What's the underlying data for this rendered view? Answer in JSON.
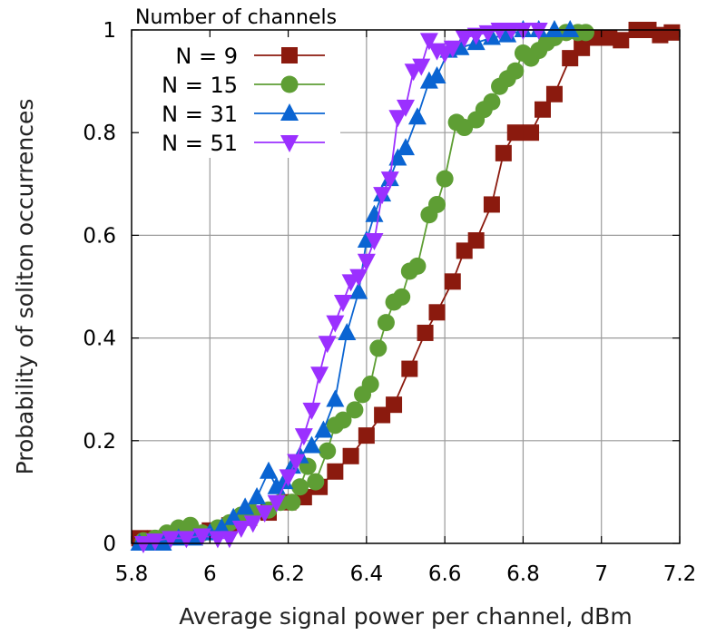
{
  "colors": {
    "N9": "#8b1a0e",
    "N15": "#5e9e34",
    "N31": "#0a64d2",
    "N51": "#9b30ff",
    "grid": "#9a9a9a",
    "axis": "#000000"
  },
  "chart_data": {
    "type": "line",
    "xlabel": "Average signal power per channel, dBm",
    "ylabel": "Probability of soliton occurrences",
    "xlim": [
      5.8,
      7.2
    ],
    "ylim": [
      0,
      1
    ],
    "xticks": [
      "5.8",
      "6",
      "6.2",
      "6.4",
      "6.6",
      "6.8",
      "7",
      "7.2"
    ],
    "yticks": [
      "0",
      "0.2",
      "0.4",
      "0.6",
      "0.8",
      "1"
    ],
    "grid": true,
    "legend_title": "Number of channels",
    "legend_position": "top-left",
    "series": [
      {
        "name": "N = 9",
        "marker": "square",
        "color_key": "N9",
        "points": [
          [
            5.82,
            0.01
          ],
          [
            5.86,
            0.01
          ],
          [
            5.9,
            0.015
          ],
          [
            5.95,
            0.02
          ],
          [
            6.0,
            0.025
          ],
          [
            6.05,
            0.035
          ],
          [
            6.1,
            0.05
          ],
          [
            6.15,
            0.06
          ],
          [
            6.2,
            0.08
          ],
          [
            6.24,
            0.09
          ],
          [
            6.28,
            0.11
          ],
          [
            6.32,
            0.14
          ],
          [
            6.36,
            0.17
          ],
          [
            6.4,
            0.21
          ],
          [
            6.44,
            0.25
          ],
          [
            6.47,
            0.27
          ],
          [
            6.51,
            0.34
          ],
          [
            6.55,
            0.41
          ],
          [
            6.58,
            0.45
          ],
          [
            6.62,
            0.51
          ],
          [
            6.65,
            0.57
          ],
          [
            6.68,
            0.59
          ],
          [
            6.72,
            0.66
          ],
          [
            6.75,
            0.76
          ],
          [
            6.78,
            0.8
          ],
          [
            6.82,
            0.8
          ],
          [
            6.85,
            0.845
          ],
          [
            6.88,
            0.875
          ],
          [
            6.92,
            0.945
          ],
          [
            6.95,
            0.965
          ],
          [
            6.98,
            0.985
          ],
          [
            7.02,
            0.985
          ],
          [
            7.05,
            0.98
          ],
          [
            7.09,
            1.0
          ],
          [
            7.12,
            1.0
          ],
          [
            7.15,
            0.99
          ],
          [
            7.18,
            0.995
          ]
        ]
      },
      {
        "name": "N = 15",
        "marker": "circle",
        "color_key": "N15",
        "points": [
          [
            5.83,
            0.005
          ],
          [
            5.86,
            0.01
          ],
          [
            5.89,
            0.02
          ],
          [
            5.92,
            0.03
          ],
          [
            5.95,
            0.035
          ],
          [
            5.98,
            0.02
          ],
          [
            6.02,
            0.03
          ],
          [
            6.05,
            0.04
          ],
          [
            6.08,
            0.055
          ],
          [
            6.11,
            0.06
          ],
          [
            6.15,
            0.065
          ],
          [
            6.18,
            0.08
          ],
          [
            6.21,
            0.08
          ],
          [
            6.23,
            0.11
          ],
          [
            6.25,
            0.15
          ],
          [
            6.27,
            0.12
          ],
          [
            6.3,
            0.18
          ],
          [
            6.32,
            0.23
          ],
          [
            6.34,
            0.24
          ],
          [
            6.37,
            0.26
          ],
          [
            6.39,
            0.29
          ],
          [
            6.41,
            0.31
          ],
          [
            6.43,
            0.38
          ],
          [
            6.45,
            0.43
          ],
          [
            6.47,
            0.47
          ],
          [
            6.49,
            0.48
          ],
          [
            6.51,
            0.53
          ],
          [
            6.53,
            0.54
          ],
          [
            6.56,
            0.64
          ],
          [
            6.58,
            0.66
          ],
          [
            6.6,
            0.71
          ],
          [
            6.63,
            0.82
          ],
          [
            6.65,
            0.81
          ],
          [
            6.68,
            0.825
          ],
          [
            6.7,
            0.845
          ],
          [
            6.72,
            0.86
          ],
          [
            6.74,
            0.89
          ],
          [
            6.76,
            0.905
          ],
          [
            6.78,
            0.92
          ],
          [
            6.8,
            0.955
          ],
          [
            6.82,
            0.945
          ],
          [
            6.84,
            0.96
          ],
          [
            6.86,
            0.975
          ],
          [
            6.88,
            0.985
          ],
          [
            6.91,
            0.995
          ],
          [
            6.94,
            0.995
          ],
          [
            6.96,
            0.995
          ]
        ]
      },
      {
        "name": "N = 31",
        "marker": "triangle-up",
        "color_key": "N31",
        "points": [
          [
            5.82,
            0.0
          ],
          [
            5.85,
            0.0
          ],
          [
            5.88,
            0.0
          ],
          [
            5.92,
            0.01
          ],
          [
            5.96,
            0.01
          ],
          [
            6.0,
            0.02
          ],
          [
            6.03,
            0.03
          ],
          [
            6.06,
            0.05
          ],
          [
            6.09,
            0.07
          ],
          [
            6.12,
            0.09
          ],
          [
            6.15,
            0.14
          ],
          [
            6.17,
            0.11
          ],
          [
            6.19,
            0.12
          ],
          [
            6.21,
            0.15
          ],
          [
            6.23,
            0.17
          ],
          [
            6.26,
            0.19
          ],
          [
            6.29,
            0.22
          ],
          [
            6.32,
            0.28
          ],
          [
            6.35,
            0.41
          ],
          [
            6.38,
            0.49
          ],
          [
            6.4,
            0.59
          ],
          [
            6.42,
            0.64
          ],
          [
            6.44,
            0.68
          ],
          [
            6.46,
            0.71
          ],
          [
            6.48,
            0.75
          ],
          [
            6.5,
            0.77
          ],
          [
            6.53,
            0.83
          ],
          [
            6.56,
            0.9
          ],
          [
            6.58,
            0.91
          ],
          [
            6.61,
            0.96
          ],
          [
            6.64,
            0.965
          ],
          [
            6.68,
            0.975
          ],
          [
            6.72,
            0.985
          ],
          [
            6.76,
            0.99
          ],
          [
            6.8,
            1.0
          ],
          [
            6.84,
            1.0
          ],
          [
            6.88,
            1.0
          ],
          [
            6.92,
            1.0
          ]
        ]
      },
      {
        "name": "N = 51",
        "marker": "triangle-down",
        "color_key": "N51",
        "points": [
          [
            5.83,
            0.0
          ],
          [
            5.86,
            0.005
          ],
          [
            5.9,
            0.01
          ],
          [
            5.94,
            0.01
          ],
          [
            5.98,
            0.015
          ],
          [
            6.02,
            0.01
          ],
          [
            6.05,
            0.01
          ],
          [
            6.08,
            0.03
          ],
          [
            6.11,
            0.04
          ],
          [
            6.14,
            0.06
          ],
          [
            6.17,
            0.08
          ],
          [
            6.2,
            0.13
          ],
          [
            6.22,
            0.16
          ],
          [
            6.24,
            0.21
          ],
          [
            6.26,
            0.26
          ],
          [
            6.28,
            0.33
          ],
          [
            6.3,
            0.39
          ],
          [
            6.32,
            0.43
          ],
          [
            6.34,
            0.47
          ],
          [
            6.36,
            0.51
          ],
          [
            6.38,
            0.52
          ],
          [
            6.4,
            0.55
          ],
          [
            6.42,
            0.59
          ],
          [
            6.44,
            0.68
          ],
          [
            6.46,
            0.71
          ],
          [
            6.48,
            0.83
          ],
          [
            6.5,
            0.85
          ],
          [
            6.52,
            0.92
          ],
          [
            6.54,
            0.93
          ],
          [
            6.56,
            0.98
          ],
          [
            6.58,
            0.96
          ],
          [
            6.6,
            0.955
          ],
          [
            6.62,
            0.965
          ],
          [
            6.65,
            0.985
          ],
          [
            6.68,
            0.99
          ],
          [
            6.71,
            0.995
          ],
          [
            6.74,
            1.0
          ],
          [
            6.77,
            1.0
          ],
          [
            6.8,
            1.0
          ],
          [
            6.84,
            1.0
          ]
        ]
      }
    ]
  }
}
